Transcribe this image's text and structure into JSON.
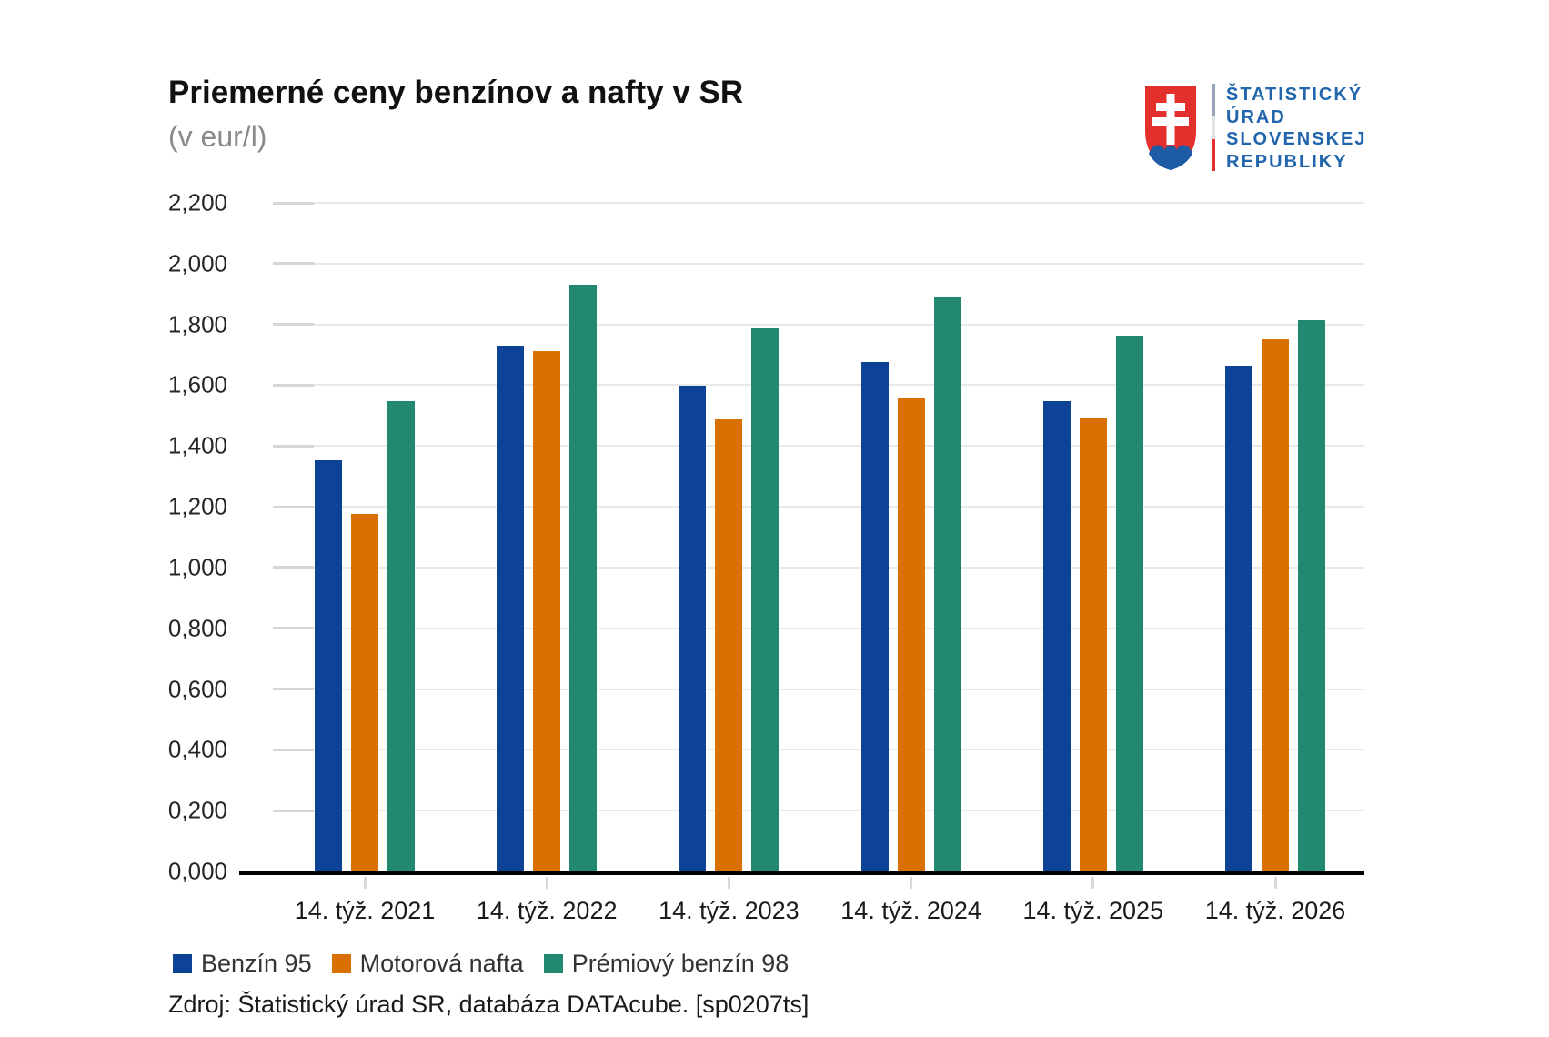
{
  "header": {
    "logo": {
      "lines": [
        "ŠTATISTICKÝ",
        "ÚRAD",
        "SLOVENSKEJ",
        "REPUBLIKY"
      ],
      "colors": {
        "text_blue": "#2166ac",
        "shield_red": "#e3302d",
        "shield_blue": "#1d5ba5"
      }
    }
  },
  "chart_data": {
    "type": "bar",
    "title": "Priemerné ceny benzínov a nafty v SR",
    "subtitle": "(v eur/l)",
    "categories": [
      "14. týž. 2021",
      "14. týž. 2022",
      "14. týž. 2023",
      "14. týž. 2024",
      "14. týž. 2025",
      "14. týž. 2026"
    ],
    "series": [
      {
        "name": "Benzín 95",
        "color": "#0d4397",
        "values": [
          1.352,
          1.729,
          1.597,
          1.676,
          1.547,
          1.663
        ]
      },
      {
        "name": "Motorová nafta",
        "color": "#d97000",
        "values": [
          1.176,
          1.711,
          1.489,
          1.56,
          1.493,
          1.75
        ]
      },
      {
        "name": "Prémiový benzín 98",
        "color": "#218970",
        "values": [
          1.548,
          1.93,
          1.786,
          1.891,
          1.762,
          1.815
        ]
      }
    ],
    "ylim": [
      0,
      2.2
    ],
    "ytick_step": 0.2,
    "ytick_labels": [
      "0,000",
      "0,200",
      "0,400",
      "0,600",
      "0,800",
      "1,000",
      "1,200",
      "1,400",
      "1,600",
      "1,800",
      "2,000",
      "2,200"
    ],
    "grid": true,
    "legend_position": "bottom",
    "colors": {
      "gridline": "#e9e9e9",
      "axis": "#000000"
    }
  },
  "source_note": "Zdroj: Štatistický úrad SR, databáza DATAcube. [sp0207ts]"
}
